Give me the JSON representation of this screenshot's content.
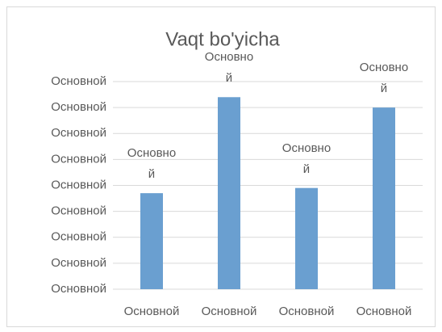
{
  "chart_data": {
    "type": "bar",
    "title": "Vaqt bo'yicha",
    "categories": [
      "Основной",
      "Основной",
      "Основной",
      "Основной"
    ],
    "values": [
      3.7,
      7.4,
      3.9,
      7.0
    ],
    "value_labels": [
      "Основной",
      "Основной",
      "Основной",
      "Основной"
    ],
    "color": "#6a9fd0",
    "ylim": [
      0,
      8
    ],
    "yticks": [
      {
        "value": 0,
        "label": "Основной"
      },
      {
        "value": 1,
        "label": "Основной"
      },
      {
        "value": 2,
        "label": "Основной"
      },
      {
        "value": 3,
        "label": "Основной"
      },
      {
        "value": 4,
        "label": "Основной"
      },
      {
        "value": 5,
        "label": "Основной"
      },
      {
        "value": 6,
        "label": "Основной"
      },
      {
        "value": 7,
        "label": "Основной"
      },
      {
        "value": 8,
        "label": "Основной"
      }
    ],
    "grid": true
  }
}
